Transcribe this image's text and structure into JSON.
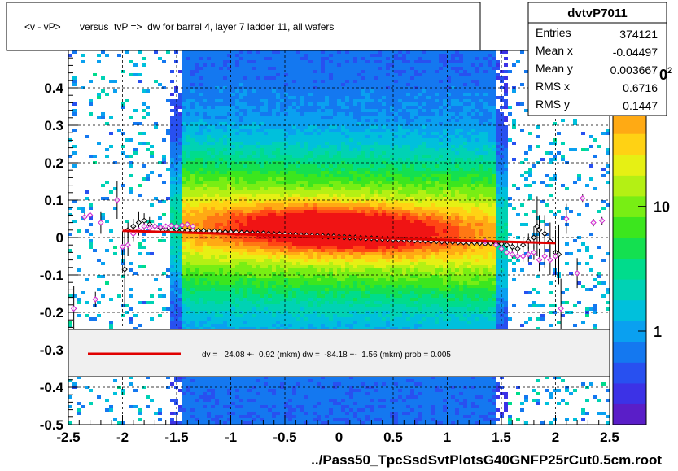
{
  "chart_data": {
    "type": "heatmap",
    "title": "<v - vP>       versus  tvP =>  dw for barrel 4, layer 7 ladder 11, all wafers",
    "xlabel": "../Pass50_TpcSsdSvtPlotsG40GNFP25rCut0.5cm.root",
    "ylabel": "",
    "xlim": [
      -2.5,
      2.5
    ],
    "ylim": [
      -0.5,
      0.5
    ],
    "x_ticks": [
      "-2.5",
      "-2",
      "-1.5",
      "-1",
      "-0.5",
      "0",
      "0.5",
      "1",
      "1.5",
      "2",
      "2.5"
    ],
    "x_tick_values": [
      -2.5,
      -2,
      -1.5,
      -1,
      -0.5,
      0,
      0.5,
      1,
      1.5,
      2,
      2.5
    ],
    "y_ticks": [
      "-0.5",
      "-0.4",
      "-0.3",
      "-0.2",
      "-0.1",
      "0",
      "0.1",
      "0.2",
      "0.3",
      "0.4"
    ],
    "y_tick_values": [
      -0.5,
      -0.4,
      -0.3,
      -0.2,
      -0.1,
      0,
      0.1,
      0.2,
      0.3,
      0.4
    ],
    "grid": true,
    "colorbar": {
      "scale": "log",
      "ticks": [
        {
          "label": "1",
          "value": 1
        },
        {
          "label": "10",
          "value": 10
        }
      ],
      "top_label_fragment": "0",
      "top_label_superscript": "2"
    },
    "stats_box": {
      "name": "dvtvP7011",
      "rows": [
        {
          "label": "Entries",
          "value": "374121"
        },
        {
          "label": "Mean x",
          "value": "-0.04497"
        },
        {
          "label": "Mean y",
          "value": "0.003667"
        },
        {
          "label": "RMS x",
          "value": "0.6716"
        },
        {
          "label": "RMS y",
          "value": "0.1447"
        }
      ]
    },
    "fit_legend": {
      "text": "dv =   24.08 +-  0.92 (mkm) dw =  -84.18 +-  1.56 (mkm) prob = 0.005",
      "line_color": "#e00000"
    },
    "fit_line": {
      "x": [
        -2.0,
        2.0
      ],
      "y": [
        0.018,
        -0.015
      ],
      "color": "#e00000"
    },
    "profile_black": {
      "x": [
        -1.95,
        -1.9,
        -1.85,
        -1.8,
        -1.75,
        -1.7,
        -1.65,
        -1.6,
        -1.55,
        -1.5,
        -1.45,
        -1.4,
        -1.35,
        -1.3,
        -1.25,
        -1.2,
        -1.15,
        -1.1,
        -1.05,
        -1.0,
        -0.95,
        -0.9,
        -0.85,
        -0.8,
        -0.75,
        -0.7,
        -0.65,
        -0.6,
        -0.55,
        -0.5,
        -0.45,
        -0.4,
        -0.35,
        -0.3,
        -0.25,
        -0.2,
        -0.15,
        -0.1,
        -0.05,
        0.0,
        0.05,
        0.1,
        0.15,
        0.2,
        0.25,
        0.3,
        0.35,
        0.4,
        0.45,
        0.5,
        0.55,
        0.6,
        0.65,
        0.7,
        0.75,
        0.8,
        0.85,
        0.9,
        0.95,
        1.0,
        1.05,
        1.1,
        1.15,
        1.2,
        1.25,
        1.3,
        1.35,
        1.4,
        1.45,
        1.5,
        1.55,
        1.6,
        1.65,
        1.7,
        1.75,
        1.8,
        1.85,
        1.9,
        1.95,
        2.0,
        -1.98,
        1.83,
        2.03
      ],
      "y": [
        0.02,
        0.03,
        0.04,
        0.045,
        0.035,
        0.03,
        0.025,
        0.022,
        0.02,
        0.021,
        0.02,
        0.019,
        0.019,
        0.018,
        0.018,
        0.017,
        0.017,
        0.016,
        0.015,
        0.015,
        0.014,
        0.013,
        0.013,
        0.012,
        0.011,
        0.011,
        0.01,
        0.009,
        0.009,
        0.008,
        0.007,
        0.007,
        0.006,
        0.006,
        0.005,
        0.005,
        0.004,
        0.003,
        0.003,
        0.002,
        0.001,
        0.0,
        0.0,
        -0.001,
        -0.002,
        -0.002,
        -0.003,
        -0.004,
        -0.004,
        -0.005,
        -0.006,
        -0.006,
        -0.007,
        -0.008,
        -0.008,
        -0.009,
        -0.01,
        -0.01,
        -0.011,
        -0.012,
        -0.012,
        -0.013,
        -0.013,
        -0.014,
        -0.014,
        -0.015,
        -0.016,
        -0.015,
        -0.016,
        -0.017,
        -0.02,
        -0.025,
        -0.03,
        -0.02,
        -0.01,
        0.0,
        0.02,
        0.01,
        -0.01,
        -0.04,
        -0.085,
        0.03,
        -0.045
      ],
      "err": [
        0.02,
        0.02,
        0.03,
        0.02,
        0.02,
        0.015,
        0.01,
        0.008,
        0.006,
        0.005,
        0.004,
        0.004,
        0.003,
        0.003,
        0.003,
        0.003,
        0.003,
        0.003,
        0.003,
        0.003,
        0.003,
        0.003,
        0.003,
        0.003,
        0.003,
        0.003,
        0.003,
        0.003,
        0.003,
        0.003,
        0.003,
        0.003,
        0.003,
        0.003,
        0.003,
        0.003,
        0.003,
        0.003,
        0.003,
        0.003,
        0.003,
        0.003,
        0.003,
        0.003,
        0.003,
        0.003,
        0.003,
        0.003,
        0.003,
        0.003,
        0.003,
        0.003,
        0.003,
        0.003,
        0.003,
        0.003,
        0.003,
        0.003,
        0.003,
        0.003,
        0.003,
        0.003,
        0.003,
        0.003,
        0.003,
        0.003,
        0.003,
        0.004,
        0.004,
        0.005,
        0.008,
        0.01,
        0.015,
        0.02,
        0.02,
        0.03,
        0.04,
        0.05,
        0.05,
        0.06,
        0.1,
        0.08,
        0.08
      ]
    },
    "profile_magenta": {
      "x": [
        -2.45,
        -2.35,
        -2.3,
        -2.25,
        -2.2,
        -2.05,
        -2.0,
        -1.95,
        -1.9,
        -1.85,
        -1.8,
        -1.75,
        -1.7,
        -1.65,
        -1.6,
        -1.55,
        -1.5,
        -1.45,
        -1.4,
        -1.35,
        1.35,
        1.45,
        1.5,
        1.55,
        1.6,
        1.65,
        1.7,
        1.75,
        1.8,
        1.85,
        1.9,
        1.95,
        2.0,
        2.05,
        2.1,
        2.2,
        2.25,
        2.35,
        2.43
      ],
      "y": [
        -0.19,
        0.055,
        0.06,
        -0.165,
        0.04,
        0.1,
        -0.025,
        -0.02,
        0.01,
        0.02,
        0.03,
        0.025,
        0.03,
        0.028,
        0.03,
        0.032,
        0.03,
        0.033,
        0.035,
        0.03,
        -0.01,
        -0.02,
        -0.03,
        -0.04,
        -0.045,
        -0.05,
        -0.05,
        -0.045,
        -0.04,
        -0.06,
        -0.05,
        -0.06,
        -0.05,
        -0.19,
        0.05,
        -0.095,
        0.105,
        0.04,
        0.045
      ],
      "err": [
        0.06,
        0.01,
        0.01,
        0.02,
        0.03,
        0.05,
        0.04,
        0.03,
        0.02,
        0.015,
        0.01,
        0.01,
        0.008,
        0.006,
        0.005,
        0.005,
        0.004,
        0.004,
        0.004,
        0.004,
        0.004,
        0.005,
        0.006,
        0.008,
        0.01,
        0.01,
        0.015,
        0.02,
        0.02,
        0.03,
        0.03,
        0.04,
        0.05,
        0.08,
        0.04,
        0.04,
        0.01,
        0.01,
        0.01
      ]
    }
  }
}
